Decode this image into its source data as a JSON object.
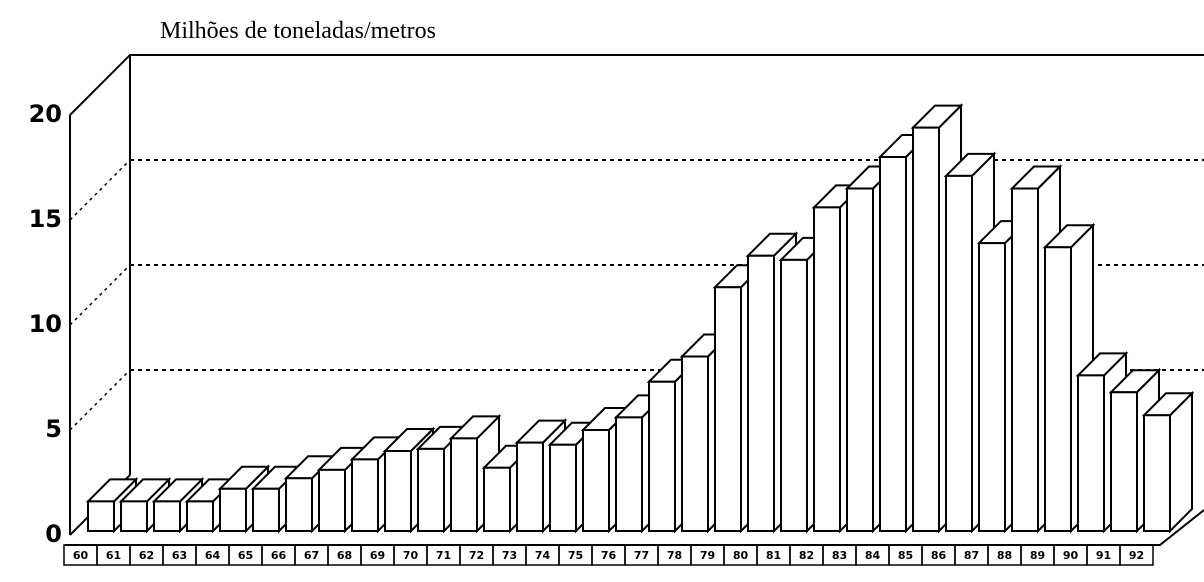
{
  "chart_data": {
    "type": "bar3d",
    "title": "Milhões de toneladas/metros",
    "categories": [
      "60",
      "61",
      "62",
      "63",
      "64",
      "65",
      "66",
      "67",
      "68",
      "69",
      "70",
      "71",
      "72",
      "73",
      "74",
      "75",
      "76",
      "77",
      "78",
      "79",
      "80",
      "81",
      "82",
      "83",
      "84",
      "85",
      "86",
      "87",
      "88",
      "89",
      "90",
      "91",
      "92"
    ],
    "values": [
      1.6,
      1.6,
      1.6,
      1.6,
      2.2,
      2.2,
      2.7,
      3.1,
      3.6,
      4.0,
      4.1,
      4.6,
      3.2,
      4.4,
      4.3,
      5.0,
      5.6,
      7.3,
      8.5,
      11.8,
      13.3,
      13.1,
      15.6,
      16.5,
      18.0,
      19.4,
      17.1,
      13.9,
      16.5,
      13.7,
      7.6,
      6.8,
      5.7
    ],
    "color": "#ffffff",
    "ylim": [
      0,
      20
    ],
    "yticks": [
      0,
      5,
      10,
      15,
      20
    ],
    "grid": true
  }
}
